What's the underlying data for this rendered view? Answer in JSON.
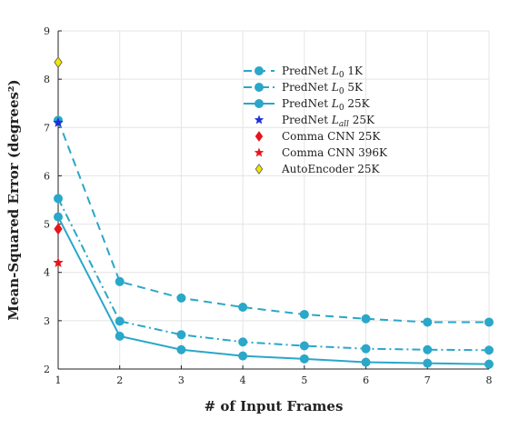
{
  "chart_data": {
    "type": "line",
    "xlabel": "# of Input Frames",
    "ylabel": "Mean-Squared Error (degrees²)",
    "xlim": [
      1,
      8
    ],
    "ylim": [
      2,
      9
    ],
    "xticks": [
      1,
      2,
      3,
      4,
      5,
      6,
      7,
      8
    ],
    "yticks": [
      2,
      3,
      4,
      5,
      6,
      7,
      8,
      9
    ],
    "grid": true,
    "legend_position": "top-right",
    "series": [
      {
        "name": "PredNet L0 1K",
        "label_base": "PredNet ",
        "label_sub": "0",
        "label_tail": " 1K",
        "style": "dashed",
        "color": "#2aa7c9",
        "marker": "circle",
        "x": [
          1,
          2,
          3,
          4,
          5,
          6,
          7,
          8
        ],
        "values": [
          7.15,
          3.81,
          3.47,
          3.28,
          3.13,
          3.04,
          2.97,
          2.97
        ]
      },
      {
        "name": "PredNet L0 5K",
        "label_base": "PredNet ",
        "label_sub": "0",
        "label_tail": " 5K",
        "style": "dashdot",
        "color": "#2aa7c9",
        "marker": "circle",
        "x": [
          1,
          2,
          3,
          4,
          5,
          6,
          7,
          8
        ],
        "values": [
          5.53,
          2.99,
          2.71,
          2.56,
          2.48,
          2.42,
          2.4,
          2.39
        ]
      },
      {
        "name": "PredNet L0 25K",
        "label_base": "PredNet ",
        "label_sub": "0",
        "label_tail": " 25K",
        "style": "solid",
        "color": "#2aa7c9",
        "marker": "circle",
        "x": [
          1,
          2,
          3,
          4,
          5,
          6,
          7,
          8
        ],
        "values": [
          5.15,
          2.68,
          2.4,
          2.27,
          2.21,
          2.14,
          2.12,
          2.1
        ]
      },
      {
        "name": "PredNet Lall 25K",
        "label_base": "PredNet ",
        "label_sub": "all",
        "label_tail": " 25K",
        "style": "none",
        "color": "#1f2fd8",
        "marker": "star",
        "x": [
          1
        ],
        "values": [
          7.1
        ]
      },
      {
        "name": "Comma CNN 25K",
        "label_base": "Comma CNN 25K",
        "label_sub": "",
        "label_tail": "",
        "style": "none",
        "color": "#e8141c",
        "marker": "diamond",
        "x": [
          1
        ],
        "values": [
          4.9
        ]
      },
      {
        "name": "Comma CNN 396K",
        "label_base": "Comma CNN 396K",
        "label_sub": "",
        "label_tail": "",
        "style": "none",
        "color": "#e8141c",
        "marker": "star",
        "x": [
          1
        ],
        "values": [
          4.2
        ]
      },
      {
        "name": "AutoEncoder 25K",
        "label_base": "AutoEncoder 25K",
        "label_sub": "",
        "label_tail": "",
        "style": "none",
        "color": "#f2e600",
        "marker": "diamond",
        "x": [
          1
        ],
        "values": [
          8.35
        ]
      }
    ]
  }
}
